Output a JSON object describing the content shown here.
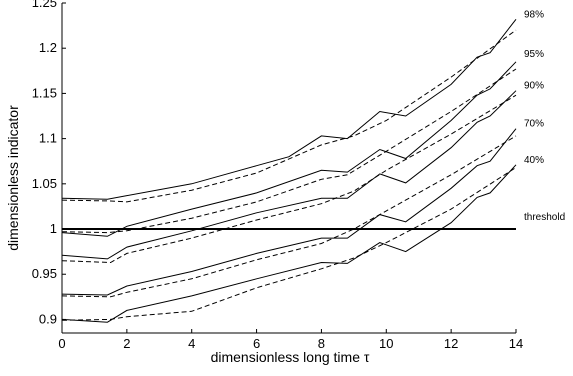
{
  "chart_data": {
    "type": "line",
    "title": "",
    "xlabel": "dimensionless long time τ",
    "ylabel": "dimensionless indicator",
    "xlim": [
      0,
      14
    ],
    "ylim": [
      0.885,
      1.25
    ],
    "xticks": [
      0,
      2,
      4,
      6,
      8,
      10,
      12,
      14
    ],
    "xtick_labels": [
      "0",
      "2",
      "4",
      "6",
      "8",
      "10",
      "12",
      "14"
    ],
    "yticks": [
      0.9,
      0.95,
      1.0,
      1.05,
      1.1,
      1.15,
      1.2,
      1.25
    ],
    "ytick_labels": [
      "0.9",
      "0.95",
      "1",
      "1.05",
      "1.1",
      "1.15",
      "1.2",
      "1.25"
    ],
    "grid": false,
    "legend": "none",
    "annotations": [
      {
        "text": "98%",
        "y": 1.232
      },
      {
        "text": "95%",
        "y": 1.188
      },
      {
        "text": "90%",
        "y": 1.153
      },
      {
        "text": "70%",
        "y": 1.111
      },
      {
        "text": "40%",
        "y": 1.071
      },
      {
        "text": "threshold",
        "y": 1.008
      }
    ],
    "threshold": {
      "y": 1.0
    },
    "series": [
      {
        "style": "solid",
        "points": [
          [
            0,
            1.034
          ],
          [
            1.4,
            1.033
          ],
          [
            2,
            1.037
          ],
          [
            4,
            1.05
          ],
          [
            6,
            1.07
          ],
          [
            7,
            1.08
          ],
          [
            8,
            1.103
          ],
          [
            8.8,
            1.1
          ],
          [
            9.8,
            1.13
          ],
          [
            10.6,
            1.125
          ],
          [
            12,
            1.16
          ],
          [
            12.8,
            1.19
          ],
          [
            13.2,
            1.195
          ],
          [
            14,
            1.232
          ]
        ]
      },
      {
        "style": "dashed",
        "points": [
          [
            0,
            1.032
          ],
          [
            1.5,
            1.031
          ],
          [
            2,
            1.03
          ],
          [
            4,
            1.043
          ],
          [
            6,
            1.062
          ],
          [
            8,
            1.093
          ],
          [
            9,
            1.103
          ],
          [
            10,
            1.12
          ],
          [
            12,
            1.168
          ],
          [
            14,
            1.22
          ]
        ]
      },
      {
        "style": "solid",
        "points": [
          [
            0,
            0.996
          ],
          [
            1.4,
            0.992
          ],
          [
            2,
            1.003
          ],
          [
            4,
            1.022
          ],
          [
            6,
            1.04
          ],
          [
            8,
            1.065
          ],
          [
            8.8,
            1.063
          ],
          [
            9.8,
            1.088
          ],
          [
            10.6,
            1.078
          ],
          [
            12,
            1.12
          ],
          [
            12.8,
            1.148
          ],
          [
            13.2,
            1.155
          ],
          [
            14,
            1.185
          ]
        ]
      },
      {
        "style": "dashed",
        "points": [
          [
            0,
            0.997
          ],
          [
            1.4,
            0.996
          ],
          [
            2,
            0.998
          ],
          [
            4,
            1.012
          ],
          [
            6,
            1.03
          ],
          [
            8,
            1.055
          ],
          [
            8.8,
            1.06
          ],
          [
            10,
            1.086
          ],
          [
            12,
            1.13
          ],
          [
            14,
            1.177
          ]
        ]
      },
      {
        "style": "solid",
        "points": [
          [
            0,
            0.971
          ],
          [
            1.4,
            0.967
          ],
          [
            2,
            0.98
          ],
          [
            4,
            0.998
          ],
          [
            6,
            1.018
          ],
          [
            8,
            1.034
          ],
          [
            8.8,
            1.034
          ],
          [
            9.8,
            1.061
          ],
          [
            10.6,
            1.051
          ],
          [
            12,
            1.09
          ],
          [
            12.8,
            1.118
          ],
          [
            13.2,
            1.125
          ],
          [
            14,
            1.153
          ]
        ]
      },
      {
        "style": "dashed",
        "points": [
          [
            0,
            0.965
          ],
          [
            1.5,
            0.963
          ],
          [
            2,
            0.973
          ],
          [
            4,
            0.99
          ],
          [
            6,
            1.01
          ],
          [
            8,
            1.028
          ],
          [
            9,
            1.042
          ],
          [
            10,
            1.065
          ],
          [
            12,
            1.105
          ],
          [
            14,
            1.148
          ]
        ]
      },
      {
        "style": "solid",
        "points": [
          [
            0,
            0.928
          ],
          [
            1.4,
            0.927
          ],
          [
            2,
            0.937
          ],
          [
            4,
            0.953
          ],
          [
            6,
            0.973
          ],
          [
            8,
            0.99
          ],
          [
            8.8,
            0.99
          ],
          [
            9.8,
            1.016
          ],
          [
            10.6,
            1.008
          ],
          [
            12,
            1.045
          ],
          [
            12.8,
            1.07
          ],
          [
            13.2,
            1.075
          ],
          [
            14,
            1.111
          ]
        ]
      },
      {
        "style": "dashed",
        "points": [
          [
            0,
            0.926
          ],
          [
            1.5,
            0.925
          ],
          [
            2,
            0.93
          ],
          [
            4,
            0.945
          ],
          [
            6,
            0.966
          ],
          [
            8,
            0.984
          ],
          [
            9,
            1.0
          ],
          [
            10,
            1.02
          ],
          [
            12,
            1.06
          ],
          [
            14,
            1.103
          ]
        ]
      },
      {
        "style": "solid",
        "points": [
          [
            0,
            0.9
          ],
          [
            1.4,
            0.897
          ],
          [
            2,
            0.91
          ],
          [
            4,
            0.926
          ],
          [
            6,
            0.945
          ],
          [
            8,
            0.963
          ],
          [
            8.8,
            0.962
          ],
          [
            9.8,
            0.985
          ],
          [
            10.6,
            0.975
          ],
          [
            12,
            1.007
          ],
          [
            12.8,
            1.035
          ],
          [
            13.2,
            1.04
          ],
          [
            14,
            1.071
          ]
        ]
      },
      {
        "style": "dashed",
        "points": [
          [
            0,
            0.899
          ],
          [
            1.5,
            0.9
          ],
          [
            2,
            0.903
          ],
          [
            4,
            0.909
          ],
          [
            6,
            0.935
          ],
          [
            8,
            0.956
          ],
          [
            9,
            0.968
          ],
          [
            10,
            0.985
          ],
          [
            12,
            1.022
          ],
          [
            14,
            1.068
          ]
        ]
      }
    ]
  }
}
